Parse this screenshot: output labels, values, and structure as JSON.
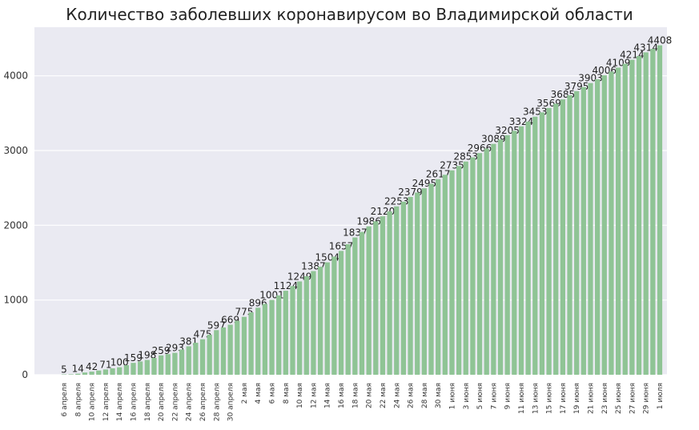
{
  "chart_data": {
    "type": "bar",
    "title": "Количество заболевших коронавирусом во Владимирской области",
    "xlabel": "",
    "ylabel": "",
    "ylim": [
      0,
      4650
    ],
    "yticks": [
      0,
      1000,
      2000,
      3000,
      4000
    ],
    "grid": true,
    "colors": {
      "bar": "#8fc495",
      "plot_bg": "#eaeaf2",
      "grid": "#ffffff"
    },
    "categories": [
      "6 апреля",
      "",
      "8 апреля",
      "",
      "10 апреля",
      "",
      "12 апреля",
      "",
      "14 апреля",
      "",
      "16 апреля",
      "",
      "18 апреля",
      "",
      "20 апреля",
      "",
      "22 апреля",
      "",
      "24 апреля",
      "",
      "26 апреля",
      "",
      "28 апреля",
      "",
      "30 апреля",
      "",
      "2 мая",
      "",
      "4 мая",
      "",
      "6 мая",
      "",
      "8 мая",
      "",
      "10 мая",
      "",
      "12 мая",
      "",
      "14 мая",
      "",
      "16 мая",
      "",
      "18 мая",
      "",
      "20 мая",
      "",
      "22 мая",
      "",
      "24 мая",
      "",
      "26 мая",
      "",
      "28 мая",
      "",
      "30 мая",
      "",
      "1 июня",
      "",
      "3 июня",
      "",
      "5 июня",
      "",
      "7 июня",
      "",
      "9 июня",
      "",
      "11 июня",
      "",
      "13 июня",
      "",
      "15 июня",
      "",
      "17 июня",
      "",
      "19 июня",
      "",
      "21 июня",
      "",
      "23 июня",
      "",
      "25 июня",
      "",
      "27 июня",
      "",
      "29 июня",
      "",
      "1 июля"
    ],
    "values": [
      5,
      6,
      14,
      30,
      42,
      57,
      71,
      86,
      100,
      128,
      159,
      178,
      198,
      225,
      259,
      276,
      293,
      337,
      381,
      428,
      475,
      536,
      597,
      633,
      669,
      722,
      775,
      836,
      896,
      948,
      1001,
      1062,
      1124,
      1186,
      1249,
      1318,
      1387,
      1445,
      1504,
      1580,
      1657,
      1747,
      1837,
      1911,
      1986,
      2053,
      2120,
      2186,
      2253,
      2316,
      2379,
      2437,
      2495,
      2556,
      2617,
      2676,
      2735,
      2794,
      2853,
      2909,
      2966,
      3027,
      3089,
      3147,
      3205,
      3264,
      3324,
      3388,
      3453,
      3511,
      3569,
      3627,
      3685,
      3740,
      3795,
      3849,
      3903,
      3954,
      4006,
      4057,
      4109,
      4161,
      4214,
      4264,
      4314,
      4361,
      4408
    ],
    "data_labels": [
      "5",
      "",
      "14",
      "",
      "42",
      "",
      "71",
      "",
      "100",
      "",
      "159",
      "",
      "198",
      "",
      "259",
      "",
      "293",
      "",
      "381",
      "",
      "475",
      "",
      "597",
      "",
      "669",
      "",
      "775",
      "",
      "896",
      "",
      "1001",
      "",
      "1124",
      "",
      "1249",
      "",
      "1387",
      "",
      "1504",
      "",
      "1657",
      "",
      "1837",
      "",
      "1986",
      "",
      "2120",
      "",
      "2253",
      "",
      "2379",
      "",
      "2495",
      "",
      "2617",
      "",
      "2735",
      "",
      "2853",
      "",
      "2966",
      "",
      "3089",
      "",
      "3205",
      "",
      "3324",
      "",
      "3453",
      "",
      "3569",
      "",
      "3685",
      "",
      "3795",
      "",
      "3903",
      "",
      "4006",
      "",
      "4109",
      "",
      "4214",
      "",
      "4314",
      "",
      "4408"
    ]
  }
}
